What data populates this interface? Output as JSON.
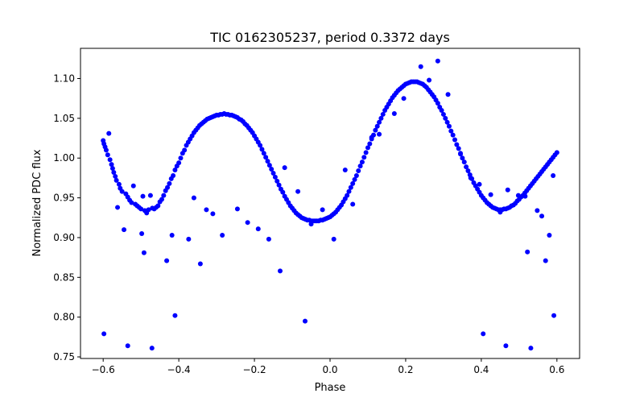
{
  "chart_data": {
    "type": "scatter",
    "title": "TIC 0162305237, period 0.3372 days",
    "xlabel": "Phase",
    "ylabel": "Normalized PDC flux",
    "xlim": [
      -0.66,
      0.66
    ],
    "ylim": [
      0.748,
      1.138
    ],
    "xticks": [
      -0.6,
      -0.4,
      -0.2,
      0.0,
      0.2,
      0.4,
      0.6
    ],
    "xtick_labels": [
      "−0.6",
      "−0.4",
      "−0.2",
      "0.0",
      "0.2",
      "0.4",
      "0.6"
    ],
    "yticks": [
      0.75,
      0.8,
      0.85,
      0.9,
      0.95,
      1.0,
      1.05,
      1.1
    ],
    "ytick_labels": [
      "0.75",
      "0.80",
      "0.85",
      "0.90",
      "0.95",
      "1.00",
      "1.05",
      "1.10"
    ],
    "grid": false,
    "legend": "none",
    "marker_color": "#0000ff",
    "series": [
      {
        "points": [
          [
            -0.6,
            1.022
          ],
          [
            -0.598,
            1.018
          ],
          [
            -0.595,
            1.014
          ],
          [
            -0.592,
            1.01
          ],
          [
            -0.588,
            1.004
          ],
          [
            -0.585,
            1.031
          ],
          [
            -0.582,
            0.998
          ],
          [
            -0.578,
            0.992
          ],
          [
            -0.575,
            0.987
          ],
          [
            -0.572,
            0.982
          ],
          [
            -0.568,
            0.977
          ],
          [
            -0.565,
            0.972
          ],
          [
            -0.562,
            0.938
          ],
          [
            -0.558,
            0.967
          ],
          [
            -0.555,
            0.962
          ],
          [
            -0.55,
            0.958
          ],
          [
            -0.545,
            0.91
          ],
          [
            -0.54,
            0.955
          ],
          [
            -0.535,
            0.951
          ],
          [
            -0.53,
            0.947
          ],
          [
            -0.525,
            0.944
          ],
          [
            -0.52,
            0.965
          ],
          [
            -0.515,
            0.942
          ],
          [
            -0.51,
            0.94
          ],
          [
            -0.505,
            0.938
          ],
          [
            -0.5,
            0.936
          ],
          [
            -0.495,
            0.952
          ],
          [
            -0.49,
            0.934
          ],
          [
            -0.485,
            0.931
          ],
          [
            -0.48,
            0.935
          ],
          [
            -0.475,
            0.953
          ],
          [
            -0.47,
            0.937
          ],
          [
            -0.465,
            0.936
          ],
          [
            -0.46,
            0.938
          ],
          [
            -0.455,
            0.94
          ],
          [
            -0.45,
            0.945
          ],
          [
            -0.445,
            0.948
          ],
          [
            -0.44,
            0.953
          ],
          [
            -0.435,
            0.959
          ],
          [
            -0.43,
            0.963
          ],
          [
            -0.425,
            0.968
          ],
          [
            -0.42,
            0.974
          ],
          [
            -0.415,
            0.978
          ],
          [
            -0.41,
            0.985
          ],
          [
            -0.405,
            0.99
          ],
          [
            -0.4,
            0.994
          ],
          [
            -0.395,
            1.0
          ],
          [
            -0.39,
            1.006
          ],
          [
            -0.385,
            1.01
          ],
          [
            -0.38,
            1.016
          ],
          [
            -0.375,
            1.02
          ],
          [
            -0.37,
            1.024
          ],
          [
            -0.365,
            1.028
          ],
          [
            -0.36,
            1.032
          ],
          [
            -0.355,
            1.035
          ],
          [
            -0.35,
            1.038
          ],
          [
            -0.345,
            1.041
          ],
          [
            -0.34,
            1.043
          ],
          [
            -0.335,
            1.045
          ],
          [
            -0.33,
            1.047
          ],
          [
            -0.325,
            1.049
          ],
          [
            -0.32,
            1.05
          ],
          [
            -0.315,
            1.051
          ],
          [
            -0.31,
            1.052
          ],
          [
            -0.305,
            1.053
          ],
          [
            -0.3,
            1.054
          ],
          [
            -0.295,
            1.054
          ],
          [
            -0.29,
            1.055
          ],
          [
            -0.285,
            1.055
          ],
          [
            -0.28,
            1.056
          ],
          [
            -0.275,
            1.055
          ],
          [
            -0.27,
            1.055
          ],
          [
            -0.265,
            1.054
          ],
          [
            -0.26,
            1.054
          ],
          [
            -0.255,
            1.053
          ],
          [
            -0.25,
            1.052
          ],
          [
            -0.245,
            1.051
          ],
          [
            -0.24,
            1.049
          ],
          [
            -0.235,
            1.048
          ],
          [
            -0.23,
            1.046
          ],
          [
            -0.225,
            1.043
          ],
          [
            -0.22,
            1.041
          ],
          [
            -0.215,
            1.038
          ],
          [
            -0.21,
            1.035
          ],
          [
            -0.205,
            1.032
          ],
          [
            -0.2,
            1.028
          ],
          [
            -0.195,
            1.024
          ],
          [
            -0.19,
            1.02
          ],
          [
            -0.185,
            1.016
          ],
          [
            -0.18,
            1.011
          ],
          [
            -0.175,
            1.006
          ],
          [
            -0.17,
            1.001
          ],
          [
            -0.165,
            0.996
          ],
          [
            -0.16,
            0.991
          ],
          [
            -0.155,
            0.986
          ],
          [
            -0.15,
            0.981
          ],
          [
            -0.145,
            0.976
          ],
          [
            -0.14,
            0.971
          ],
          [
            -0.135,
            0.966
          ],
          [
            -0.13,
            0.961
          ],
          [
            -0.125,
            0.957
          ],
          [
            -0.12,
            0.952
          ],
          [
            -0.115,
            0.948
          ],
          [
            -0.11,
            0.944
          ],
          [
            -0.105,
            0.94
          ],
          [
            -0.1,
            0.937
          ],
          [
            -0.095,
            0.934
          ],
          [
            -0.09,
            0.931
          ],
          [
            -0.085,
            0.929
          ],
          [
            -0.08,
            0.927
          ],
          [
            -0.075,
            0.925
          ],
          [
            -0.07,
            0.924
          ],
          [
            -0.065,
            0.923
          ],
          [
            -0.06,
            0.922
          ],
          [
            -0.055,
            0.922
          ],
          [
            -0.05,
            0.921
          ],
          [
            -0.045,
            0.921
          ],
          [
            -0.04,
            0.921
          ],
          [
            -0.035,
            0.921
          ],
          [
            -0.03,
            0.921
          ],
          [
            -0.025,
            0.922
          ],
          [
            -0.02,
            0.922
          ],
          [
            -0.015,
            0.923
          ],
          [
            -0.01,
            0.924
          ],
          [
            -0.005,
            0.925
          ],
          [
            0.0,
            0.926
          ],
          [
            0.005,
            0.928
          ],
          [
            0.01,
            0.93
          ],
          [
            0.015,
            0.932
          ],
          [
            0.02,
            0.935
          ],
          [
            0.025,
            0.938
          ],
          [
            0.03,
            0.941
          ],
          [
            0.035,
            0.945
          ],
          [
            0.04,
            0.949
          ],
          [
            0.045,
            0.953
          ],
          [
            0.05,
            0.958
          ],
          [
            0.055,
            0.963
          ],
          [
            0.06,
            0.968
          ],
          [
            0.065,
            0.973
          ],
          [
            0.07,
            0.978
          ],
          [
            0.075,
            0.984
          ],
          [
            0.08,
            0.99
          ],
          [
            0.085,
            0.995
          ],
          [
            0.09,
            1.001
          ],
          [
            0.095,
            1.007
          ],
          [
            0.1,
            1.013
          ],
          [
            0.105,
            1.018
          ],
          [
            0.11,
            1.024
          ],
          [
            0.115,
            1.029
          ],
          [
            0.12,
            1.035
          ],
          [
            0.125,
            1.04
          ],
          [
            0.13,
            1.045
          ],
          [
            0.135,
            1.05
          ],
          [
            0.14,
            1.055
          ],
          [
            0.145,
            1.06
          ],
          [
            0.15,
            1.064
          ],
          [
            0.155,
            1.068
          ],
          [
            0.16,
            1.072
          ],
          [
            0.165,
            1.076
          ],
          [
            0.17,
            1.079
          ],
          [
            0.175,
            1.082
          ],
          [
            0.18,
            1.085
          ],
          [
            0.185,
            1.087
          ],
          [
            0.19,
            1.089
          ],
          [
            0.195,
            1.091
          ],
          [
            0.2,
            1.093
          ],
          [
            0.205,
            1.094
          ],
          [
            0.21,
            1.095
          ],
          [
            0.215,
            1.096
          ],
          [
            0.22,
            1.096
          ],
          [
            0.225,
            1.096
          ],
          [
            0.23,
            1.096
          ],
          [
            0.235,
            1.095
          ],
          [
            0.24,
            1.094
          ],
          [
            0.245,
            1.093
          ],
          [
            0.25,
            1.091
          ],
          [
            0.255,
            1.089
          ],
          [
            0.26,
            1.086
          ],
          [
            0.265,
            1.083
          ],
          [
            0.27,
            1.08
          ],
          [
            0.275,
            1.077
          ],
          [
            0.28,
            1.073
          ],
          [
            0.285,
            1.069
          ],
          [
            0.29,
            1.064
          ],
          [
            0.295,
            1.06
          ],
          [
            0.3,
            1.055
          ],
          [
            0.305,
            1.05
          ],
          [
            0.31,
            1.045
          ],
          [
            0.315,
            1.04
          ],
          [
            0.32,
            1.034
          ],
          [
            0.325,
            1.029
          ],
          [
            0.33,
            1.023
          ],
          [
            0.335,
            1.017
          ],
          [
            0.34,
            1.012
          ],
          [
            0.345,
            1.006
          ],
          [
            0.35,
            1.0
          ],
          [
            0.355,
            0.995
          ],
          [
            0.36,
            0.989
          ],
          [
            0.365,
            0.984
          ],
          [
            0.37,
            0.979
          ],
          [
            0.375,
            0.974
          ],
          [
            0.38,
            0.969
          ],
          [
            0.385,
            0.965
          ],
          [
            0.39,
            0.961
          ],
          [
            0.395,
            0.957
          ],
          [
            0.4,
            0.953
          ],
          [
            0.405,
            0.95
          ],
          [
            0.41,
            0.947
          ],
          [
            0.415,
            0.944
          ],
          [
            0.42,
            0.942
          ],
          [
            0.425,
            0.94
          ],
          [
            0.43,
            0.938
          ],
          [
            0.435,
            0.937
          ],
          [
            0.44,
            0.936
          ],
          [
            0.445,
            0.935
          ],
          [
            0.45,
            0.935
          ],
          [
            0.455,
            0.935
          ],
          [
            0.46,
            0.936
          ],
          [
            0.465,
            0.936
          ],
          [
            0.47,
            0.937
          ],
          [
            0.475,
            0.938
          ],
          [
            0.48,
            0.94
          ],
          [
            0.485,
            0.941
          ],
          [
            0.49,
            0.943
          ],
          [
            0.495,
            0.946
          ],
          [
            0.5,
            0.948
          ],
          [
            0.505,
            0.951
          ],
          [
            0.51,
            0.953
          ],
          [
            0.515,
            0.956
          ],
          [
            0.52,
            0.959
          ],
          [
            0.525,
            0.962
          ],
          [
            0.53,
            0.965
          ],
          [
            0.535,
            0.968
          ],
          [
            0.54,
            0.971
          ],
          [
            0.545,
            0.974
          ],
          [
            0.55,
            0.977
          ],
          [
            0.555,
            0.98
          ],
          [
            0.56,
            0.983
          ],
          [
            0.565,
            0.986
          ],
          [
            0.57,
            0.989
          ],
          [
            0.575,
            0.992
          ],
          [
            0.58,
            0.995
          ],
          [
            0.585,
            0.998
          ],
          [
            0.59,
            1.001
          ],
          [
            0.595,
            1.004
          ],
          [
            0.6,
            1.007
          ],
          [
            -0.598,
            0.779
          ],
          [
            -0.535,
            0.764
          ],
          [
            -0.498,
            0.905
          ],
          [
            -0.492,
            0.881
          ],
          [
            -0.471,
            0.761
          ],
          [
            -0.432,
            0.871
          ],
          [
            -0.418,
            0.903
          ],
          [
            -0.41,
            0.802
          ],
          [
            -0.374,
            0.898
          ],
          [
            -0.36,
            0.95
          ],
          [
            -0.343,
            0.867
          ],
          [
            -0.327,
            0.935
          ],
          [
            -0.31,
            0.93
          ],
          [
            -0.285,
            0.903
          ],
          [
            -0.245,
            0.936
          ],
          [
            -0.218,
            0.919
          ],
          [
            -0.19,
            0.911
          ],
          [
            -0.162,
            0.898
          ],
          [
            -0.132,
            0.858
          ],
          [
            -0.12,
            0.988
          ],
          [
            -0.085,
            0.958
          ],
          [
            -0.066,
            0.795
          ],
          [
            -0.05,
            0.917
          ],
          [
            -0.02,
            0.935
          ],
          [
            0.01,
            0.898
          ],
          [
            0.04,
            0.985
          ],
          [
            0.06,
            0.942
          ],
          [
            0.11,
            1.026
          ],
          [
            0.13,
            1.03
          ],
          [
            0.17,
            1.056
          ],
          [
            0.195,
            1.075
          ],
          [
            0.24,
            1.115
          ],
          [
            0.262,
            1.098
          ],
          [
            0.285,
            1.122
          ],
          [
            0.312,
            1.08
          ],
          [
            0.345,
            1.005
          ],
          [
            0.372,
            0.975
          ],
          [
            0.395,
            0.967
          ],
          [
            0.405,
            0.779
          ],
          [
            0.425,
            0.954
          ],
          [
            0.45,
            0.932
          ],
          [
            0.465,
            0.764
          ],
          [
            0.47,
            0.96
          ],
          [
            0.498,
            0.953
          ],
          [
            0.516,
            0.952
          ],
          [
            0.522,
            0.882
          ],
          [
            0.531,
            0.761
          ],
          [
            0.548,
            0.934
          ],
          [
            0.56,
            0.927
          ],
          [
            0.57,
            0.871
          ],
          [
            0.58,
            0.903
          ],
          [
            0.59,
            0.978
          ],
          [
            0.592,
            0.802
          ]
        ]
      }
    ]
  }
}
